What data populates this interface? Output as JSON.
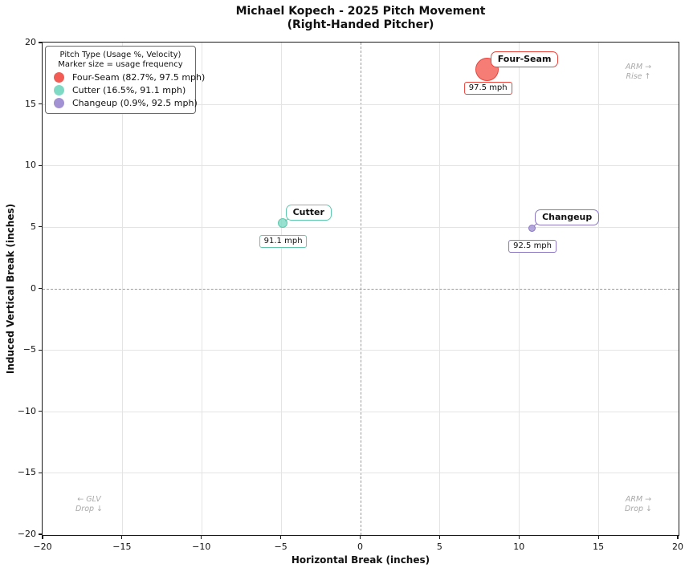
{
  "figure": {
    "title": "Michael Kopech - 2025 Pitch Movement",
    "subtitle": "(Right-Handed Pitcher)"
  },
  "chart_data": {
    "type": "scatter",
    "title": "Michael Kopech - 2025 Pitch Movement",
    "subtitle": "(Right-Handed Pitcher)",
    "xlabel": "Horizontal Break (inches)",
    "ylabel": "Induced Vertical Break (inches)",
    "xlim": [
      -20,
      20
    ],
    "ylim": [
      -20,
      20
    ],
    "xticks": [
      -20,
      -15,
      -10,
      -5,
      0,
      5,
      10,
      15,
      20
    ],
    "yticks": [
      -20,
      -15,
      -10,
      -5,
      0,
      5,
      10,
      15,
      20
    ],
    "grid": true,
    "zero_line_style": "dashed",
    "legend": {
      "title": "Pitch Type (Usage %, Velocity)",
      "subtitle": "Marker size = usage frequency",
      "position": "upper-left"
    },
    "series": [
      {
        "name": "Four-Seam",
        "legend_label": "Four-Seam (82.7%, 97.5 mph)",
        "usage_pct": 82.7,
        "velocity_mph": 97.5,
        "velocity_label": "97.5 mph",
        "x": 8.0,
        "y": 17.8,
        "marker_d": 29,
        "fill": "#f25c54",
        "edge": "#e8453c"
      },
      {
        "name": "Cutter",
        "legend_label": "Cutter (16.5%, 91.1 mph)",
        "usage_pct": 16.5,
        "velocity_mph": 91.1,
        "velocity_label": "91.1 mph",
        "x": -4.9,
        "y": 5.3,
        "marker_d": 12,
        "fill": "#7edac4",
        "edge": "#5ec9ae"
      },
      {
        "name": "Changeup",
        "legend_label": "Changeup (0.9%, 92.5 mph)",
        "usage_pct": 0.9,
        "velocity_mph": 92.5,
        "velocity_label": "92.5 mph",
        "x": 10.8,
        "y": 4.9,
        "marker_d": 9,
        "fill": "#a392d3",
        "edge": "#8b77c4"
      }
    ],
    "annotations": [
      {
        "line1": "ARM →",
        "line2": "Rise ↑",
        "corner": "top-right"
      },
      {
        "line1": "← GLV",
        "line2": "Drop ↓",
        "corner": "bottom-left"
      },
      {
        "line1": "ARM →",
        "line2": "Drop ↓",
        "corner": "bottom-right"
      }
    ]
  }
}
